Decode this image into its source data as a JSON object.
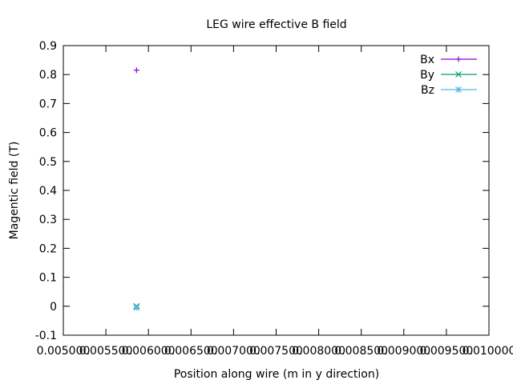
{
  "chart_data": {
    "type": "scatter",
    "title": "LEG wire effective B field",
    "xlabel": "Position along wire (m in y direction)",
    "ylabel": "Magentic field (T)",
    "xlim": [
      0.005,
      0.01
    ],
    "ylim": [
      -0.1,
      0.9
    ],
    "x_ticks": [
      0.005,
      0.0055,
      0.006,
      0.0065,
      0.007,
      0.0075,
      0.008,
      0.0085,
      0.009,
      0.0095,
      0.01
    ],
    "x_tick_labels": [
      "0.005000",
      "0.005500",
      "0.006000",
      "0.006500",
      "0.007000",
      "0.007500",
      "0.008000",
      "0.008500",
      "0.009000",
      "0.009500",
      "0.010000"
    ],
    "y_ticks": [
      -0.1,
      0,
      0.1,
      0.2,
      0.3,
      0.4,
      0.5,
      0.6,
      0.7,
      0.8,
      0.9
    ],
    "y_tick_labels": [
      "-0.1",
      "0",
      "0.1",
      "0.2",
      "0.3",
      "0.4",
      "0.5",
      "0.6",
      "0.7",
      "0.8",
      "0.9"
    ],
    "grid": false,
    "legend_position": "top-right",
    "series": [
      {
        "name": "Bx",
        "marker": "plus",
        "color": "#9400d3",
        "points": [
          {
            "x": 0.00586,
            "y": 0.815
          }
        ]
      },
      {
        "name": "By",
        "marker": "cross",
        "color": "#009e73",
        "points": [
          {
            "x": 0.00586,
            "y": 0.0
          }
        ]
      },
      {
        "name": "Bz",
        "marker": "star",
        "color": "#56b4e9",
        "points": [
          {
            "x": 0.00586,
            "y": -0.005
          }
        ]
      }
    ]
  }
}
